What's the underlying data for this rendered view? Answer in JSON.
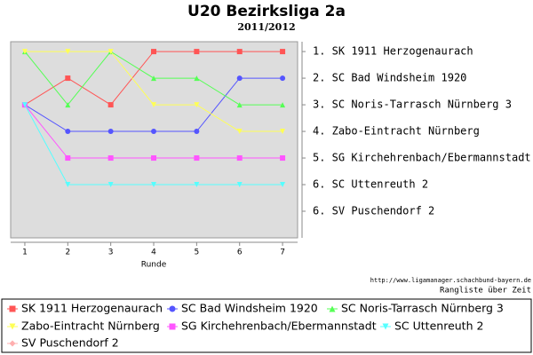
{
  "chart_data": {
    "type": "line",
    "title": "U20 Bezirksliga 2a",
    "subtitle": "2011/2012",
    "x_label": "Runde",
    "annotations": [
      "http://www.ligamanager.schachbund-bayern.de",
      "Rangliste über Zeit"
    ],
    "x": [
      1,
      2,
      3,
      4,
      5,
      6,
      7
    ],
    "xlim": [
      0.67,
      7.35
    ],
    "xticks": [
      1,
      2,
      3,
      4,
      5,
      6,
      7
    ],
    "ylim": [
      8,
      0.63
    ],
    "yticks": [
      {
        "value": 1,
        "label": "1. SK 1911 Herzogenaurach"
      },
      {
        "value": 2,
        "label": "2. SC Bad Windsheim 1920"
      },
      {
        "value": 3,
        "label": "3. SC Noris-Tarrasch Nürnberg 3"
      },
      {
        "value": 4,
        "label": "4. Zabo-Eintracht Nürnberg"
      },
      {
        "value": 5,
        "label": "5. SG Kirchehrenbach/Ebermannstadt"
      },
      {
        "value": 6,
        "label": "6. SC Uttenreuth 2"
      },
      {
        "value": 7,
        "label": "6. SV Puschendorf 2"
      }
    ],
    "series": [
      {
        "name": "SK 1911 Herzogenaurach",
        "color": "#ff5555",
        "values": [
          3,
          2,
          3,
          1,
          1,
          1,
          1
        ]
      },
      {
        "name": "SC Bad Windsheim 1920",
        "color": "#5555ff",
        "values": [
          3,
          4,
          4,
          4,
          4,
          2,
          2
        ]
      },
      {
        "name": "SC Noris-Tarrasch Nürnberg 3",
        "color": "#55ff55",
        "values": [
          1,
          3,
          1,
          2,
          2,
          3,
          3
        ]
      },
      {
        "name": "Zabo-Eintracht Nürnberg",
        "color": "#ffff55",
        "values": [
          1,
          1,
          1,
          3,
          3,
          4,
          4
        ]
      },
      {
        "name": "SG Kirchehrenbach/Ebermannstadt",
        "color": "#ff55ff",
        "values": [
          3,
          5,
          5,
          5,
          5,
          5,
          5
        ]
      },
      {
        "name": "SC Uttenreuth 2",
        "color": "#55ffff",
        "values": [
          3,
          6,
          6,
          6,
          6,
          6,
          6
        ]
      },
      {
        "name": "SV Puschendorf 2",
        "color": "#ffafaf",
        "values": [
          null,
          null,
          null,
          null,
          null,
          null,
          null
        ]
      }
    ]
  }
}
